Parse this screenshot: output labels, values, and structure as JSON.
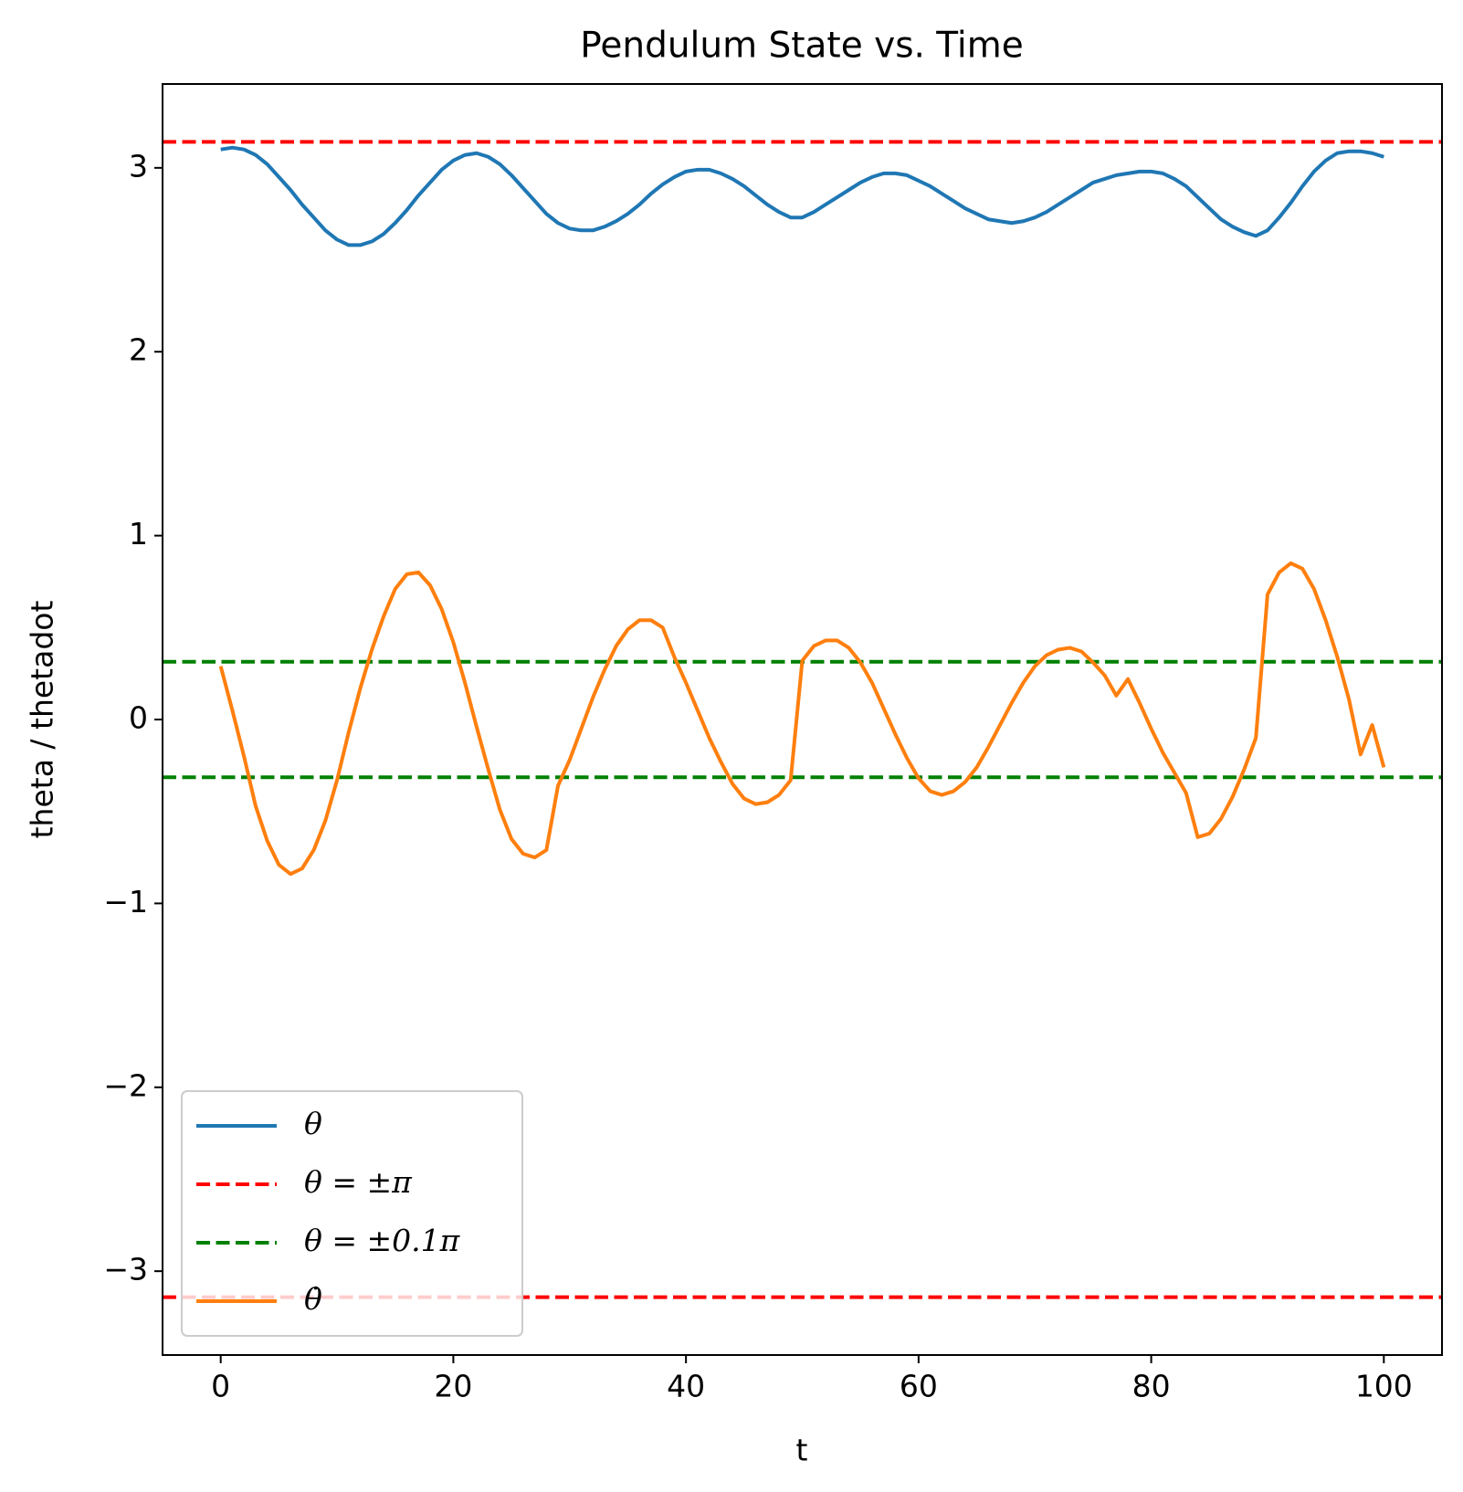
{
  "chart_data": {
    "type": "line",
    "title": "Pendulum State vs. Time",
    "x_label": "t",
    "y_label": "theta / thetadot",
    "x": [
      0,
      1,
      2,
      3,
      4,
      5,
      6,
      7,
      8,
      9,
      10,
      11,
      12,
      13,
      14,
      15,
      16,
      17,
      18,
      19,
      20,
      21,
      22,
      23,
      24,
      25,
      26,
      27,
      28,
      29,
      30,
      31,
      32,
      33,
      34,
      35,
      36,
      37,
      38,
      39,
      40,
      41,
      42,
      43,
      44,
      45,
      46,
      47,
      48,
      49,
      50,
      51,
      52,
      53,
      54,
      55,
      56,
      57,
      58,
      59,
      60,
      61,
      62,
      63,
      64,
      65,
      66,
      67,
      68,
      69,
      70,
      71,
      72,
      73,
      74,
      75,
      76,
      77,
      78,
      79,
      80,
      81,
      82,
      83,
      84,
      85,
      86,
      87,
      88,
      89,
      90,
      91,
      92,
      93,
      94,
      95,
      96,
      97,
      98,
      99,
      100
    ],
    "xlim": [
      -5,
      105
    ],
    "xticks": [
      0,
      20,
      40,
      60,
      80,
      100
    ],
    "ylim": [
      -3.456,
      3.456
    ],
    "yticks": [
      {
        "value": -3,
        "label": "−3"
      },
      {
        "value": -2,
        "label": "−2"
      },
      {
        "value": -1,
        "label": "−1"
      },
      0,
      1,
      2,
      3
    ],
    "legend": "lower left",
    "series": [
      {
        "name": "θ",
        "color": "#1f77b4",
        "style": "solid",
        "values": [
          3.1,
          3.11,
          3.1,
          3.07,
          3.02,
          2.95,
          2.88,
          2.8,
          2.73,
          2.66,
          2.61,
          2.58,
          2.58,
          2.6,
          2.64,
          2.7,
          2.77,
          2.85,
          2.92,
          2.99,
          3.04,
          3.07,
          3.08,
          3.06,
          3.02,
          2.96,
          2.89,
          2.82,
          2.75,
          2.7,
          2.67,
          2.66,
          2.66,
          2.68,
          2.71,
          2.75,
          2.8,
          2.86,
          2.91,
          2.95,
          2.98,
          2.99,
          2.99,
          2.97,
          2.94,
          2.9,
          2.85,
          2.8,
          2.76,
          2.73,
          2.73,
          2.76,
          2.8,
          2.84,
          2.88,
          2.92,
          2.95,
          2.97,
          2.97,
          2.96,
          2.93,
          2.9,
          2.86,
          2.82,
          2.78,
          2.75,
          2.72,
          2.71,
          2.7,
          2.71,
          2.73,
          2.76,
          2.8,
          2.84,
          2.88,
          2.92,
          2.94,
          2.96,
          2.97,
          2.98,
          2.98,
          2.97,
          2.94,
          2.9,
          2.84,
          2.78,
          2.72,
          2.68,
          2.65,
          2.63,
          2.66,
          2.73,
          2.81,
          2.9,
          2.98,
          3.04,
          3.08,
          3.09,
          3.09,
          3.08,
          3.06
        ]
      },
      {
        "name": "θ = ±π",
        "color": "#ff0000",
        "style": "dashed",
        "hlines": [
          3.141593,
          -3.141593
        ]
      },
      {
        "name": "θ = ±0.1π",
        "color": "#008000",
        "style": "dashed",
        "hlines": [
          0.314159,
          -0.314159
        ]
      },
      {
        "name": "θ̇",
        "color": "#ff7f0e",
        "style": "solid",
        "values": [
          0.29,
          0.05,
          -0.2,
          -0.47,
          -0.66,
          -0.79,
          -0.84,
          -0.81,
          -0.71,
          -0.55,
          -0.33,
          -0.07,
          0.17,
          0.38,
          0.56,
          0.71,
          0.79,
          0.8,
          0.73,
          0.6,
          0.42,
          0.2,
          -0.04,
          -0.27,
          -0.49,
          -0.65,
          -0.73,
          -0.75,
          -0.71,
          -0.36,
          -0.22,
          -0.05,
          0.12,
          0.27,
          0.4,
          0.49,
          0.54,
          0.54,
          0.5,
          0.34,
          0.2,
          0.05,
          -0.1,
          -0.23,
          -0.35,
          -0.43,
          -0.46,
          -0.45,
          -0.41,
          -0.33,
          0.32,
          0.4,
          0.43,
          0.43,
          0.39,
          0.31,
          0.2,
          0.06,
          -0.08,
          -0.21,
          -0.32,
          -0.39,
          -0.41,
          -0.39,
          -0.34,
          -0.26,
          -0.15,
          -0.03,
          0.09,
          0.2,
          0.29,
          0.35,
          0.38,
          0.39,
          0.37,
          0.31,
          0.24,
          0.13,
          0.22,
          0.09,
          -0.05,
          -0.18,
          -0.29,
          -0.4,
          -0.64,
          -0.62,
          -0.54,
          -0.42,
          -0.27,
          -0.1,
          0.68,
          0.8,
          0.85,
          0.82,
          0.71,
          0.54,
          0.34,
          0.11,
          -0.19,
          -0.03,
          -0.26
        ]
      }
    ]
  }
}
